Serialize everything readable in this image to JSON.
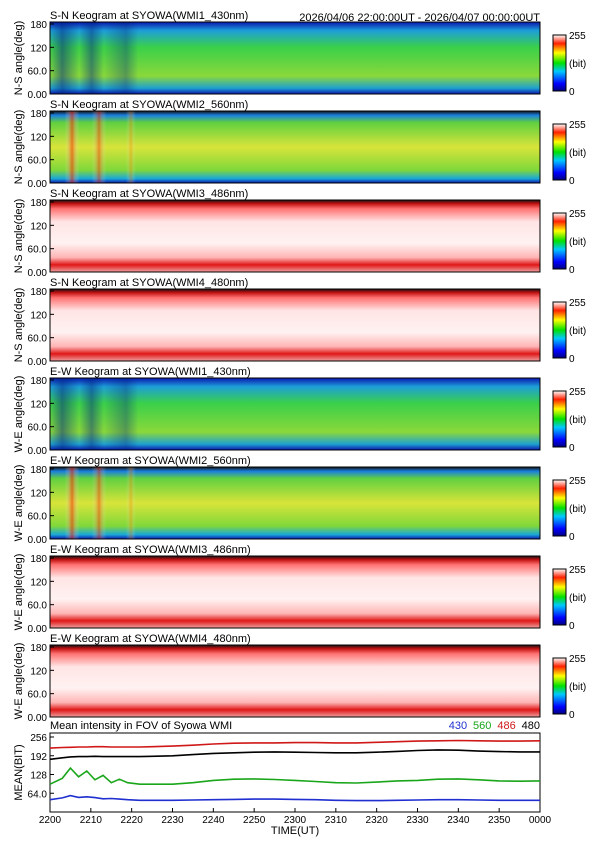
{
  "header": {
    "time_range": "2026/04/06 22:00:00UT - 2026/04/07 00:00:00UT"
  },
  "colorbar": {
    "max_label": "255",
    "mid_label": "(bit)",
    "min_label": "0"
  },
  "panel_ticks": [
    "0.00",
    "60.0",
    "120",
    "180"
  ],
  "panels": [
    {
      "title": "S-N Keogram at SYOWA(WMI1_430nm)",
      "ylabel": "N-S angle(deg)",
      "style": "green"
    },
    {
      "title": "S-N Keogram at SYOWA(WMI2_560nm)",
      "ylabel": "N-S angle(deg)",
      "style": "yellow"
    },
    {
      "title": "S-N Keogram at SYOWA(WMI3_486nm)",
      "ylabel": "N-S angle(deg)",
      "style": "white"
    },
    {
      "title": "S-N Keogram at SYOWA(WMI4_480nm)",
      "ylabel": "N-S angle(deg)",
      "style": "white"
    },
    {
      "title": "E-W Keogram at SYOWA(WMI1_430nm)",
      "ylabel": "W-E angle(deg)",
      "style": "green"
    },
    {
      "title": "E-W Keogram at SYOWA(WMI2_560nm)",
      "ylabel": "W-E angle(deg)",
      "style": "yellow"
    },
    {
      "title": "E-W Keogram at SYOWA(WMI3_486nm)",
      "ylabel": "W-E angle(deg)",
      "style": "white"
    },
    {
      "title": "E-W Keogram at SYOWA(WMI4_480nm)",
      "ylabel": "W-E angle(deg)",
      "style": "white"
    }
  ],
  "chart_data": {
    "type": "line",
    "title": "Mean intensity in FOV of Syowa WMI",
    "xlabel": "TIME(UT)",
    "ylabel": "MEAN(BIT)",
    "x_ticks": [
      "2200",
      "2210",
      "2220",
      "2230",
      "2240",
      "2250",
      "2300",
      "2310",
      "2320",
      "2330",
      "2340",
      "2350",
      "0000"
    ],
    "y_ticks": [
      "64.0",
      "128",
      "192",
      "256"
    ],
    "ylim": [
      0,
      256
    ],
    "x_minutes": [
      0,
      3,
      5,
      7,
      9,
      11,
      13,
      15,
      17,
      19,
      22,
      25,
      30,
      35,
      40,
      45,
      50,
      55,
      60,
      65,
      70,
      75,
      80,
      85,
      90,
      95,
      100,
      105,
      110,
      115,
      120
    ],
    "series": [
      {
        "name": "430",
        "color": "#1f2fd0",
        "values": [
          42,
          48,
          56,
          50,
          52,
          49,
          45,
          46,
          44,
          42,
          40,
          40,
          40,
          41,
          42,
          43,
          44,
          44,
          43,
          42,
          40,
          39,
          39,
          40,
          41,
          42,
          42,
          41,
          40,
          40,
          40
        ]
      },
      {
        "name": "560",
        "color": "#1aa61a",
        "values": [
          95,
          115,
          150,
          120,
          140,
          110,
          125,
          100,
          112,
          100,
          95,
          95,
          95,
          100,
          108,
          112,
          113,
          111,
          108,
          104,
          100,
          99,
          102,
          106,
          108,
          112,
          113,
          110,
          106,
          105,
          106
        ]
      },
      {
        "name": "486",
        "color": "#d01818",
        "values": [
          218,
          220,
          221,
          222,
          222,
          223,
          223,
          222,
          222,
          222,
          222,
          223,
          225,
          228,
          232,
          235,
          236,
          236,
          237,
          237,
          236,
          236,
          238,
          240,
          242,
          243,
          244,
          243,
          242,
          242,
          243
        ]
      },
      {
        "name": "480",
        "color": "#000000",
        "values": [
          180,
          185,
          188,
          189,
          189,
          190,
          189,
          189,
          189,
          189,
          189,
          190,
          192,
          196,
          200,
          202,
          204,
          205,
          204,
          203,
          202,
          202,
          204,
          207,
          210,
          212,
          211,
          208,
          206,
          205,
          205
        ]
      }
    ]
  }
}
